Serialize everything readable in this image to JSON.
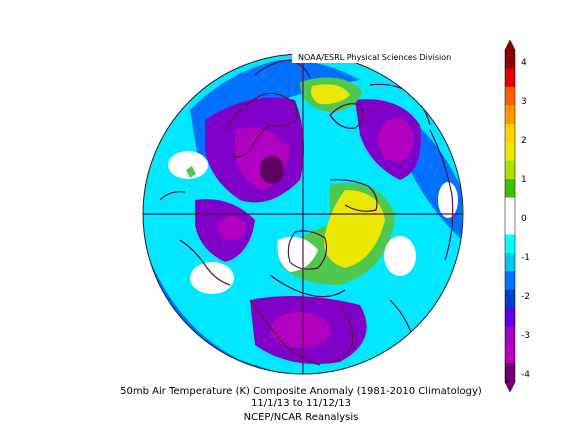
{
  "credit": "NOAA/ESRL Physical Sciences Division",
  "caption": {
    "line1": "50mb Air Temperature (K) Composite Anomaly (1981-2010 Climatology)",
    "line2": "11/1/13  to 11/12/13",
    "line3": "NCEP/NCAR Reanalysis"
  },
  "colorbar": {
    "ticks": [
      "4",
      "3",
      "2",
      "1",
      "0",
      "-1",
      "-2",
      "-3",
      "-4"
    ],
    "colors": [
      "#8b0000",
      "#e00000",
      "#ff6000",
      "#ff9a00",
      "#ffd000",
      "#e8e800",
      "#a8e000",
      "#40c000",
      "#ffffff",
      "#ffffff",
      "#00ffff",
      "#00c8e8",
      "#0070ff",
      "#0040c8",
      "#6000e0",
      "#a000c0",
      "#b800b8",
      "#700070"
    ]
  },
  "map": {
    "projection": "north-polar-stereographic",
    "colors": {
      "ocean_base": "#00e8ff",
      "cool": "#0070ff",
      "deep": "#1040c8",
      "purple": "#8000c8",
      "magenta": "#b000c0",
      "darkpurple": "#600060",
      "warm": "#e8e800",
      "green": "#50c850",
      "white": "#ffffff",
      "coast": "#5a1040"
    }
  }
}
